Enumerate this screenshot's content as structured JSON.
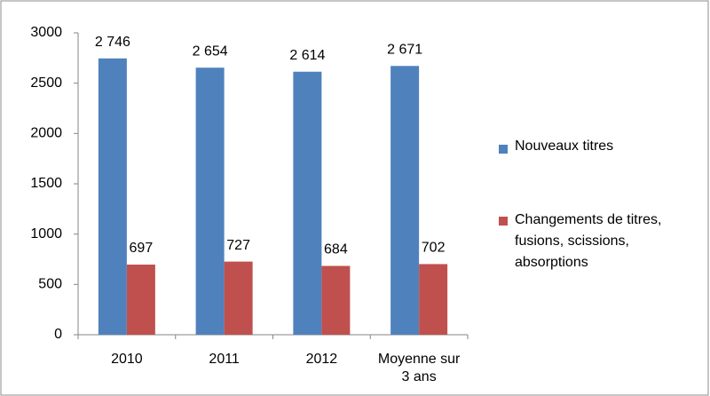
{
  "chart_data": {
    "type": "bar",
    "categories": [
      "2010",
      "2011",
      "2012",
      "Moyenne sur 3 ans"
    ],
    "series": [
      {
        "name": "Nouveaux titres",
        "color": "#4f81bd",
        "values": [
          2746,
          2654,
          2614,
          2671
        ],
        "value_labels": [
          "2 746",
          "2 654",
          "2 614",
          "2 671"
        ]
      },
      {
        "name": "Changements de titres, fusions, scissions, absorptions",
        "color": "#c0504d",
        "values": [
          697,
          727,
          684,
          702
        ],
        "value_labels": [
          "697",
          "727",
          "684",
          "702"
        ]
      }
    ],
    "ylim": [
      0,
      3000
    ],
    "yticks": [
      0,
      500,
      1000,
      1500,
      2000,
      2500,
      3000
    ],
    "grid": false,
    "legend": "right"
  }
}
